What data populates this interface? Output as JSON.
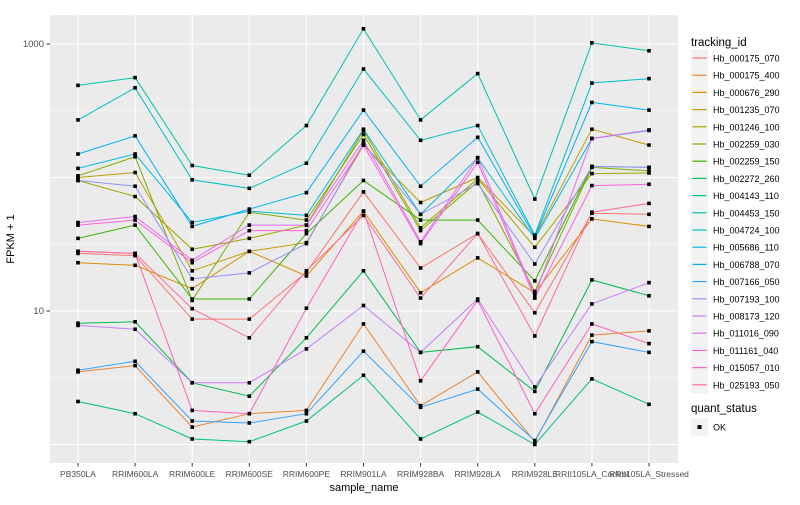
{
  "chart_data": {
    "type": "line",
    "xlabel": "sample_name",
    "ylabel": "FPKM + 1",
    "y_scale": "log10",
    "y_tick_labels": [
      {
        "value": 1000,
        "label": "1000"
      },
      {
        "value": 10,
        "label": "10"
      }
    ],
    "y_major_gridlines": [
      1,
      10,
      100,
      1000
    ],
    "y_minor_gridlines": [
      3.162,
      31.62,
      316.2
    ],
    "ylim_log": [
      -0.15,
      3.22
    ],
    "categories": [
      "PB350LA",
      "RRIM600LA",
      "RRIM600LE",
      "RRIM600SE",
      "RRIM600PE",
      "RRIM901LA",
      "RRIM928BA",
      "RRIM928LA",
      "RRIM928LE",
      "RRII105LA_Control",
      "RRII105LA_Stressed"
    ],
    "series": [
      {
        "name": "Hb_000175_070",
        "color": "#F8766D",
        "values": [
          27,
          26,
          8.7,
          8.7,
          19.5,
          78,
          21,
          38,
          9.7,
          54,
          53
        ]
      },
      {
        "name": "Hb_000175_400",
        "color": "#EA8331",
        "values": [
          3.5,
          3.9,
          1.35,
          1.7,
          1.8,
          8,
          1.95,
          3.5,
          1.05,
          6.6,
          7.1
        ]
      },
      {
        "name": "Hb_000676_290",
        "color": "#D89000",
        "values": [
          23,
          22,
          14.7,
          28,
          18.3,
          56,
          13.7,
          25,
          13.7,
          49,
          43
        ]
      },
      {
        "name": "Hb_001235_070",
        "color": "#C09B00",
        "values": [
          100,
          109,
          20,
          28,
          32.5,
          175,
          65,
          100,
          36,
          230,
          175
        ]
      },
      {
        "name": "Hb_001246_100",
        "color": "#A3A500",
        "values": [
          95,
          72,
          29,
          35,
          44,
          225,
          42,
          98,
          30,
          107,
          108
        ]
      },
      {
        "name": "Hb_002259_030",
        "color": "#7CAE00",
        "values": [
          103,
          143,
          12,
          55,
          48,
          210,
          40,
          93,
          14,
          119,
          112
        ]
      },
      {
        "name": "Hb_002259_150",
        "color": "#39B600",
        "values": [
          35,
          44,
          12.3,
          12.3,
          38,
          95,
          48,
          48,
          16.8,
          121,
          119
        ]
      },
      {
        "name": "Hb_002272_260",
        "color": "#00BB4E",
        "values": [
          8.1,
          8.3,
          2.9,
          2.3,
          6.3,
          20,
          4.9,
          5.4,
          2.5,
          17.1,
          13
        ]
      },
      {
        "name": "Hb_004143_110",
        "color": "#00C087",
        "values": [
          2.1,
          1.7,
          1.1,
          1.05,
          1.5,
          3.3,
          1.1,
          1.75,
          1.0,
          3.1,
          2.0
        ]
      },
      {
        "name": "Hb_004453_150",
        "color": "#00C1AB",
        "values": [
          490,
          560,
          123,
          104,
          245,
          1300,
          270,
          600,
          69,
          1020,
          890
        ]
      },
      {
        "name": "Hb_004724_100",
        "color": "#00BFC4",
        "values": [
          270,
          470,
          96,
          83,
          128,
          650,
          190,
          245,
          37,
          510,
          550
        ]
      },
      {
        "name": "Hb_005686_110",
        "color": "#00BAE0",
        "values": [
          117,
          150,
          46,
          56,
          52,
          230,
          53,
          140,
          35,
          196,
          225
        ]
      },
      {
        "name": "Hb_006788_070",
        "color": "#00B0F6",
        "values": [
          150,
          205,
          43,
          58,
          77,
          320,
          86,
          200,
          36,
          365,
          320
        ]
      },
      {
        "name": "Hb_007166_050",
        "color": "#35A2FF",
        "values": [
          3.6,
          4.2,
          1.5,
          1.45,
          1.7,
          5,
          1.9,
          2.6,
          1.07,
          5.9,
          4.9
        ]
      },
      {
        "name": "Hb_007193_100",
        "color": "#9590FF",
        "values": [
          95,
          86,
          17.4,
          19.3,
          32,
          180,
          53,
          90,
          22.5,
          121,
          119
        ]
      },
      {
        "name": "Hb_008173_120",
        "color": "#C77CFF",
        "values": [
          7.8,
          7.3,
          2.9,
          2.9,
          5.2,
          11,
          4.9,
          12.3,
          2.7,
          11.3,
          16.3
        ]
      },
      {
        "name": "Hb_011016_090",
        "color": "#E76BF3",
        "values": [
          46,
          51,
          24,
          44,
          44,
          190,
          33,
          141,
          13,
          196,
          227
        ]
      },
      {
        "name": "Hb_011161_040",
        "color": "#FA62DB",
        "values": [
          44,
          48,
          23,
          40,
          40,
          175,
          32,
          130,
          12.5,
          87,
          89
        ]
      },
      {
        "name": "Hb_015057_010",
        "color": "#FF62BC",
        "values": [
          28,
          27,
          1.8,
          1.7,
          10.5,
          56,
          3.0,
          12,
          1.7,
          8.0,
          5.7
        ]
      },
      {
        "name": "Hb_025193_050",
        "color": "#FF6A98",
        "values": [
          28,
          27,
          10.4,
          6.3,
          20,
          52,
          12.5,
          38,
          6.5,
          55,
          64
        ]
      }
    ],
    "legend": {
      "tracking_title": "tracking_id",
      "quant_title": "quant_status",
      "quant_items": [
        {
          "label": "OK"
        }
      ]
    },
    "colors": {
      "panel_bg": "#EBEBEB",
      "gridline": "#FFFFFF",
      "tick_label": "#4D4D4D",
      "axis_title": "#000000",
      "point": "#000000",
      "legend_key_bg": "#F2F2F2",
      "tick_mark": "#333333"
    },
    "layout": {
      "legend_position": "right",
      "grid": true,
      "marker": "square"
    }
  }
}
